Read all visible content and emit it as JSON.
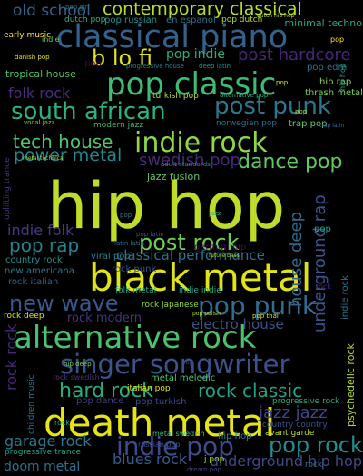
{
  "cloud": {
    "background": "#000000",
    "palette": {
      "yellow": "#dfe318",
      "lime": "#a0da39",
      "green": "#4ac16d",
      "teal": "#1fa187",
      "cyan": "#27808e",
      "blue": "#365c8d",
      "indigo": "#46327e",
      "purple": "#440154"
    },
    "words": [
      {
        "text": "hip hop",
        "color": "#c0dc2a"
      },
      {
        "text": "black metal",
        "color": "#dfe318"
      },
      {
        "text": "death metal",
        "color": "#e4e419"
      },
      {
        "text": "classical piano",
        "color": "#33638d"
      },
      {
        "text": "pop classic",
        "color": "#3dbc74"
      },
      {
        "text": "alternative rock",
        "color": "#4ac16d"
      },
      {
        "text": "indie rock",
        "color": "#8fd744"
      },
      {
        "text": "singer songwriter",
        "color": "#3b528b"
      },
      {
        "text": "post punk",
        "color": "#2a788e"
      },
      {
        "text": "south african",
        "color": "#2db27d"
      },
      {
        "text": "indie pop",
        "color": "#3e4a89"
      },
      {
        "text": "pop punk",
        "color": "#2e6e8e"
      },
      {
        "text": "post rock",
        "color": "#6ccd5a"
      },
      {
        "text": "contemporary classical",
        "color": "#b5de2b"
      },
      {
        "text": "new wave",
        "color": "#38598c"
      },
      {
        "text": "tech house",
        "color": "#52c569"
      },
      {
        "text": "dance pop",
        "color": "#60ca60"
      },
      {
        "text": "b lo fi",
        "color": "#e0e21a"
      },
      {
        "text": "pop rock",
        "color": "#21908d"
      },
      {
        "text": "power metal",
        "color": "#24868e"
      },
      {
        "text": "rock classic",
        "color": "#20a386"
      },
      {
        "text": "hard rock",
        "color": "#26ad81"
      },
      {
        "text": "post hardcore",
        "color": "#482677"
      },
      {
        "text": "pop rap",
        "color": "#26828e"
      },
      {
        "text": "jazz jazz",
        "color": "#414487"
      },
      {
        "text": "garage rock",
        "color": "#2a788e"
      },
      {
        "text": "blues rock",
        "color": "#365c8d"
      },
      {
        "text": "doom metal",
        "color": "#2c728e"
      },
      {
        "text": "underground hip hop",
        "color": "#3e4989"
      },
      {
        "text": "old school",
        "color": "#34618d"
      },
      {
        "text": "folk rock",
        "color": "#472d7b"
      },
      {
        "text": "swedish pop",
        "color": "#482979"
      },
      {
        "text": "indie folk",
        "color": "#443a83"
      },
      {
        "text": "pop indie",
        "color": "#29af7f"
      },
      {
        "text": "house deep",
        "color": "#31688e"
      },
      {
        "text": "underground rap",
        "color": "#3a548c"
      },
      {
        "text": "classical performance",
        "color": "#2c728e"
      },
      {
        "text": "electro house",
        "color": "#3b528b"
      },
      {
        "text": "rock modern",
        "color": "#46337e"
      },
      {
        "text": "pop edm",
        "color": "#2d708e"
      },
      {
        "text": "hip hop",
        "color": "#25848e"
      },
      {
        "text": "rock punk",
        "color": "#3b528b"
      },
      {
        "text": "pop dance",
        "color": "#433d84"
      },
      {
        "text": "tropical house",
        "color": "#4ac16d"
      },
      {
        "text": "pop russian",
        "color": "#20928c"
      },
      {
        "text": "en espanol",
        "color": "#2c738e"
      },
      {
        "text": "minimal techno",
        "color": "#22a785"
      },
      {
        "text": "pop dutch",
        "color": "#b8de29"
      },
      {
        "text": "dutch pop",
        "color": "#2db27d"
      },
      {
        "text": "early music",
        "color": "#fde725"
      },
      {
        "text": "pop girl",
        "color": "#2a788e"
      },
      {
        "text": "dutch hip hop",
        "color": "#b2dd2d"
      },
      {
        "text": "danish pop",
        "color": "#dfe318"
      },
      {
        "text": "progressive house",
        "color": "#277f8e"
      },
      {
        "text": "deep latin",
        "color": "#1f978b"
      },
      {
        "text": "turkish pop",
        "color": "#b2dd2d"
      },
      {
        "text": "alternative pop",
        "color": "#2ab07f"
      },
      {
        "text": "hip rap",
        "color": "#8bd646"
      },
      {
        "text": "thrash metal",
        "color": "#7ad151"
      },
      {
        "text": "modern jazz",
        "color": "#3dbc74"
      },
      {
        "text": "norwegian pop",
        "color": "#2c728e"
      },
      {
        "text": "trap pop",
        "color": "#5ec962"
      },
      {
        "text": "trap latin",
        "color": "#2f6c8e"
      },
      {
        "text": "vocal jazz",
        "color": "#7ad151"
      },
      {
        "text": "jazz fusion",
        "color": "#5ec962"
      },
      {
        "text": "adult standards",
        "color": "#20928c"
      },
      {
        "text": "metal technical",
        "color": "#a5db36"
      },
      {
        "text": "uplifting trance",
        "color": "#453882"
      },
      {
        "text": "pop latin",
        "color": "#3b528b"
      },
      {
        "text": "latin latin",
        "color": "#2d708e"
      },
      {
        "text": "german hip",
        "color": "#440154"
      },
      {
        "text": "future bass",
        "color": "#a0da39"
      },
      {
        "text": "country rock",
        "color": "#21908d"
      },
      {
        "text": "new americana",
        "color": "#2a788e"
      },
      {
        "text": "rock italian",
        "color": "#34618d"
      },
      {
        "text": "viral pop",
        "color": "#26828e"
      },
      {
        "text": "folk metal",
        "color": "#20a386"
      },
      {
        "text": "indie indie",
        "color": "#22a884"
      },
      {
        "text": "rock deep",
        "color": "#dfe318"
      },
      {
        "text": "rock japanese",
        "color": "#8fd744"
      },
      {
        "text": "pop polish",
        "color": "#b5de2b"
      },
      {
        "text": "pop thai",
        "color": "#dfe318"
      },
      {
        "text": "metal melodic",
        "color": "#4ac16d"
      },
      {
        "text": "italian pop",
        "color": "#dfe318"
      },
      {
        "text": "pop turkish",
        "color": "#3e4a89"
      },
      {
        "text": "metal swedish",
        "color": "#3dbc74"
      },
      {
        "text": "rock swedish",
        "color": "#46337e"
      },
      {
        "text": "progressive rock",
        "color": "#2db27d"
      },
      {
        "text": "progressive trance",
        "color": "#20a386"
      },
      {
        "text": "avant garde",
        "color": "#bddf26"
      },
      {
        "text": "country country",
        "color": "#3d4e8a"
      },
      {
        "text": "russian pop",
        "color": "#3b528b"
      },
      {
        "text": "j pop",
        "color": "#a0da39"
      },
      {
        "text": "dream pop",
        "color": "#433e85"
      },
      {
        "text": "psychedelic rock",
        "color": "#b2dd2d"
      },
      {
        "text": "children music",
        "color": "#29798e"
      },
      {
        "text": "rock rock",
        "color": "#482878"
      },
      {
        "text": "hip deep",
        "color": "#6ccd5a"
      },
      {
        "text": "hip hop",
        "color": "#20a386"
      },
      {
        "text": "indie rock",
        "color": "#2c728e"
      },
      {
        "text": "pop",
        "color": "#440154"
      },
      {
        "text": "pop",
        "color": "#3e4a89"
      },
      {
        "text": "pop",
        "color": "#20a386"
      },
      {
        "text": "pop",
        "color": "#dfe318"
      },
      {
        "text": "rock",
        "color": "#2c728e"
      },
      {
        "text": "pop",
        "color": "#fde725"
      },
      {
        "text": "rock",
        "color": "#22a884"
      },
      {
        "text": "indie",
        "color": "#6ccd5a"
      },
      {
        "text": "pop",
        "color": "#2a788e"
      },
      {
        "text": "rock",
        "color": "#482878"
      },
      {
        "text": "jazz",
        "color": "#22a884"
      },
      {
        "text": "pop",
        "color": "#a0da39"
      }
    ]
  }
}
